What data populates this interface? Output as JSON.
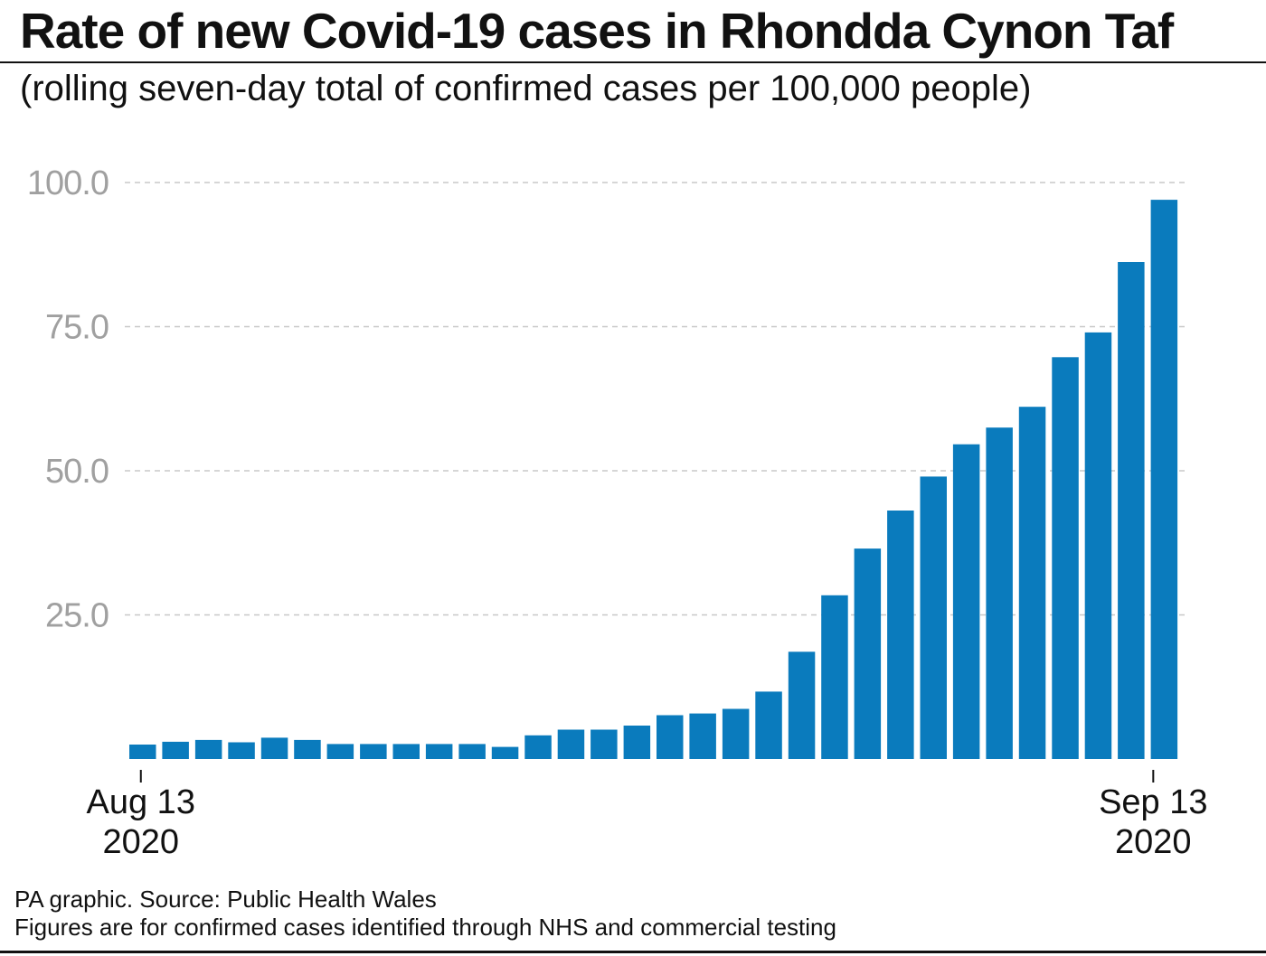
{
  "header": {
    "title": "Rate of new Covid-19 cases in Rhondda Cynon Taf",
    "subtitle": "(rolling seven-day total of confirmed cases per 100,000 people)"
  },
  "footer": {
    "source": "PA graphic. Source: Public Health Wales",
    "note": "Figures are for confirmed cases identified through NHS and commercial testing"
  },
  "chart_data": {
    "type": "bar",
    "x_tick_labels": [
      {
        "line1": "Aug 13",
        "line2": "2020"
      },
      {
        "line1": "Sep 13",
        "line2": "2020"
      }
    ],
    "y_ticks": [
      "100.0",
      "75.0",
      "50.0",
      "25.0"
    ],
    "ylim": [
      0,
      100
    ],
    "grid": true,
    "bar_color": "#0a7bbd",
    "values": [
      2.5,
      3.0,
      3.3,
      2.9,
      3.7,
      3.3,
      2.6,
      2.6,
      2.6,
      2.6,
      2.6,
      2.1,
      4.1,
      5.1,
      5.1,
      5.8,
      7.6,
      7.9,
      8.7,
      11.7,
      18.6,
      28.4,
      36.5,
      43.1,
      49.0,
      54.6,
      57.5,
      61.1,
      69.7,
      74.0,
      86.2,
      97.0
    ]
  }
}
